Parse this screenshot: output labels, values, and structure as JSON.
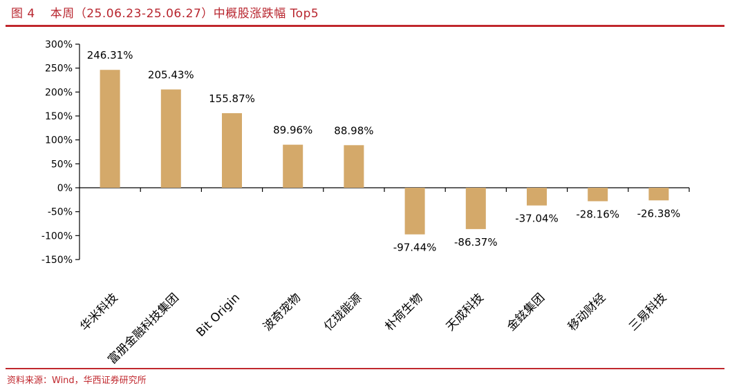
{
  "header": {
    "figure_number": "图 4",
    "title_text": "本周（25.06.23-25.06.27）中概股涨跌幅 Top5"
  },
  "footer": {
    "source_text": "资料来源：Wind，华西证券研究所"
  },
  "colors": {
    "accent": "#c0272d",
    "bar": "#d4a96a",
    "axis": "#000000"
  },
  "chart_data": {
    "type": "bar",
    "categories": [
      "华米科技",
      "富册金融科技集团",
      "Bit Origin",
      "波奇宠物",
      "亿珑能源",
      "朴荷生物",
      "天成科技",
      "金鉉集团",
      "移动财经",
      "三易科技"
    ],
    "values": [
      246.31,
      205.43,
      155.87,
      89.96,
      88.98,
      -97.44,
      -86.37,
      -37.04,
      -28.16,
      -26.38
    ],
    "data_labels": [
      "246.31%",
      "205.43%",
      "155.87%",
      "89.96%",
      "88.98%",
      "-97.44%",
      "-86.37%",
      "-37.04%",
      "-28.16%",
      "-26.38%"
    ],
    "ylim": [
      -150,
      300
    ],
    "yticks": [
      300,
      250,
      200,
      150,
      100,
      50,
      0,
      -50,
      -100,
      -150
    ],
    "ytick_labels": [
      "300%",
      "250%",
      "200%",
      "150%",
      "100%",
      "50%",
      "0%",
      "-50%",
      "-100%",
      "-150%"
    ],
    "xlabel": "",
    "ylabel": "",
    "grid": false
  }
}
